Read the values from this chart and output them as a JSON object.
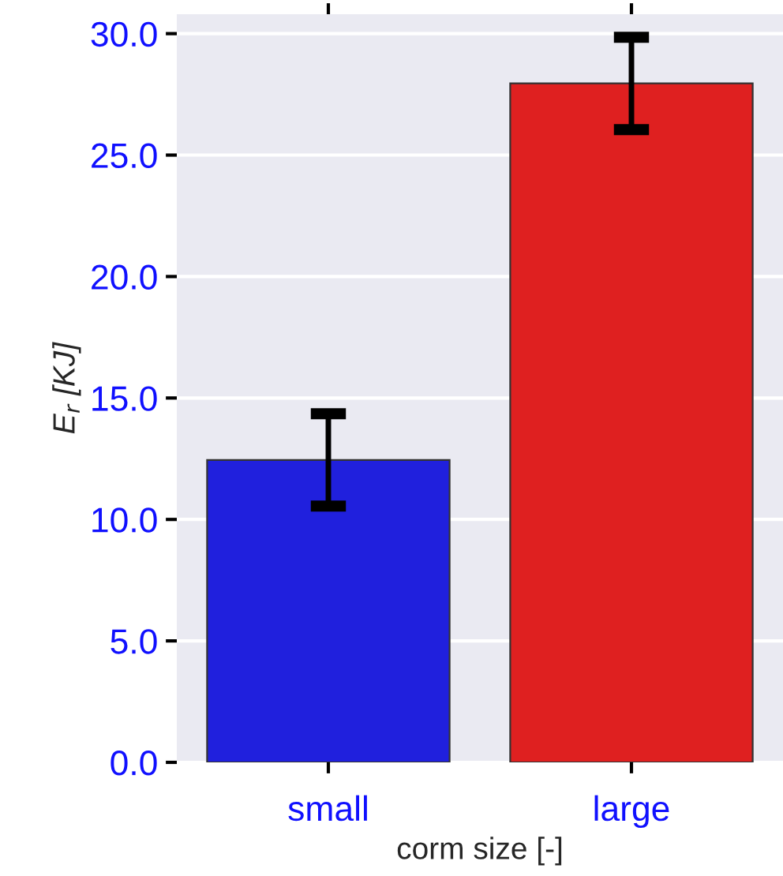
{
  "chart_data": {
    "type": "bar",
    "xlabel": "corm size [-]",
    "ylabel": "E$_{r}$ [KJ]",
    "categories": [
      "small",
      "large"
    ],
    "values": [
      12.45,
      27.95
    ],
    "errors": [
      1.9,
      1.9
    ],
    "colors": [
      "#2020dd",
      "#df2020"
    ],
    "ylim": [
      0,
      30.8
    ],
    "yticks": [
      {
        "value": 0,
        "label": "0.0"
      },
      {
        "value": 5,
        "label": "5.0"
      },
      {
        "value": 10,
        "label": "10.0"
      },
      {
        "value": 15,
        "label": "15.0"
      },
      {
        "value": 20,
        "label": "20.0"
      },
      {
        "value": 25,
        "label": "25.0"
      },
      {
        "value": 30,
        "label": "30.0"
      }
    ],
    "grid": "y"
  }
}
